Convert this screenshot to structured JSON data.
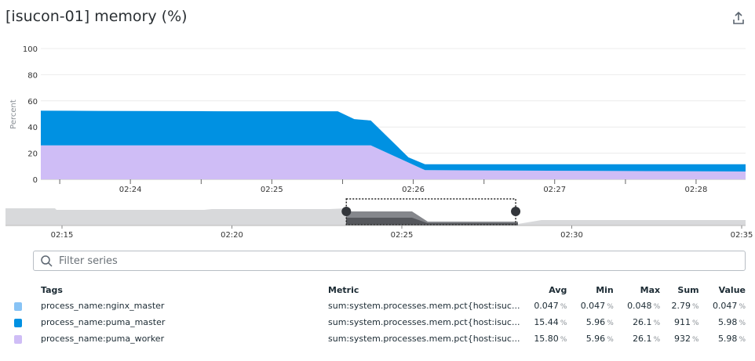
{
  "title": "[isucon-01] memory (%)",
  "export_icon": "share-export-icon",
  "filter": {
    "placeholder": "Filter series",
    "value": ""
  },
  "colors": {
    "nginx_master": "#88c3f5",
    "puma_master": "#0091e2",
    "puma_worker": "#cfbdf6"
  },
  "chart_data": {
    "type": "area",
    "stacked": true,
    "ylabel": "Percent",
    "ylim": [
      0,
      100
    ],
    "yticks": [
      0,
      20,
      40,
      60,
      80,
      100
    ],
    "xlim": [
      "02:23:22",
      "02:28:21"
    ],
    "xticks": [
      "02:24",
      "02:25",
      "02:26",
      "02:27",
      "02:28"
    ],
    "series": [
      {
        "name": "process_name:puma_worker",
        "color": "#cfbdf6",
        "x": [
          "02:23:22",
          "02:25:42",
          "02:26:05",
          "02:28:21"
        ],
        "values": [
          26,
          26,
          7,
          6
        ]
      },
      {
        "name": "process_name:puma_master",
        "color": "#0091e2",
        "x": [
          "02:23:22",
          "02:24:45",
          "02:25:28",
          "02:25:35",
          "02:25:42",
          "02:25:58",
          "02:26:05",
          "02:28:21"
        ],
        "values": [
          26.5,
          26,
          26,
          20,
          19,
          4,
          4.5,
          5.5
        ]
      },
      {
        "name": "process_name:nginx_master",
        "color": "#88c3f5",
        "x": [
          "02:23:22",
          "02:28:21"
        ],
        "values": [
          0.047,
          0.047
        ]
      }
    ],
    "navigator": {
      "xticks": [
        "02:15",
        "02:20",
        "02:25",
        "02:30",
        "02:35"
      ],
      "selection": [
        "02:23:22",
        "02:28:21"
      ]
    }
  },
  "table": {
    "headers": {
      "tags": "Tags",
      "metric": "Metric",
      "avg": "Avg",
      "min": "Min",
      "max": "Max",
      "sum": "Sum",
      "value": "Value"
    },
    "unit": "%",
    "rows": [
      {
        "color": "#88c3f5",
        "tags": "process_name:nginx_master",
        "metric": "sum:system.processes.mem.pct{host:isuc...",
        "avg": "0.047",
        "min": "0.047",
        "max": "0.048",
        "sum": "2.79",
        "value": "0.047"
      },
      {
        "color": "#0091e2",
        "tags": "process_name:puma_master",
        "metric": "sum:system.processes.mem.pct{host:isuc...",
        "avg": "15.44",
        "min": "5.96",
        "max": "26.1",
        "sum": "911",
        "value": "5.98"
      },
      {
        "color": "#cfbdf6",
        "tags": "process_name:puma_worker",
        "metric": "sum:system.processes.mem.pct{host:isuc...",
        "avg": "15.80",
        "min": "5.96",
        "max": "26.1",
        "sum": "932",
        "value": "5.98"
      }
    ]
  }
}
